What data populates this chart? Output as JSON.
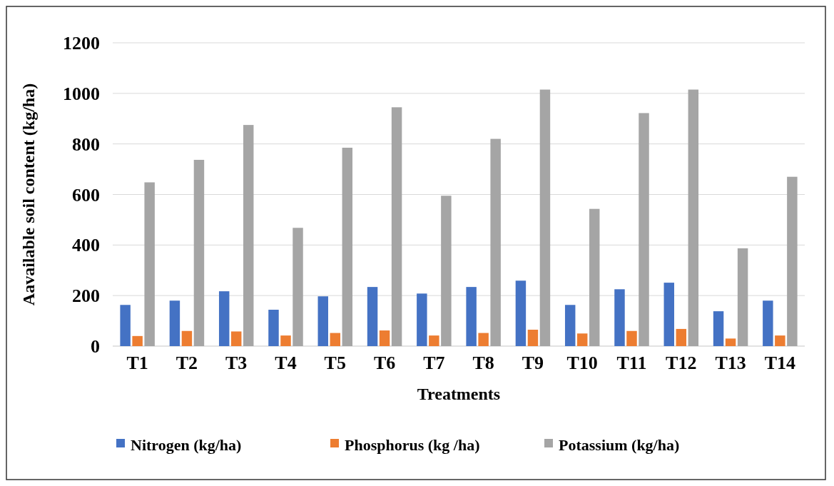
{
  "chart_data": {
    "type": "bar",
    "xlabel": "Treatments",
    "ylabel": "Aavailable soil content (kg/ha)",
    "categories": [
      "T1",
      "T2",
      "T3",
      "T4",
      "T5",
      "T6",
      "T7",
      "T8",
      "T9",
      "T10",
      "T11",
      "T12",
      "T13",
      "T14"
    ],
    "series": [
      {
        "name": "Nitrogen (kg/ha)",
        "color": "#4472c4",
        "values": [
          163,
          180,
          217,
          144,
          197,
          234,
          208,
          234,
          259,
          163,
          225,
          251,
          138,
          180
        ]
      },
      {
        "name": "Phosphorus (kg /ha)",
        "color": "#ed7d31",
        "values": [
          40,
          60,
          58,
          42,
          52,
          62,
          42,
          52,
          65,
          50,
          60,
          68,
          30,
          42
        ]
      },
      {
        "name": "Potassium (kg/ha)",
        "color": "#a5a5a5",
        "values": [
          648,
          737,
          875,
          468,
          785,
          945,
          595,
          820,
          1015,
          543,
          922,
          1015,
          387,
          670
        ]
      }
    ],
    "ylim": [
      0,
      1200
    ],
    "yticks": [
      0,
      200,
      400,
      600,
      800,
      1000,
      1200
    ],
    "grid": "y",
    "legend": "bottom"
  }
}
